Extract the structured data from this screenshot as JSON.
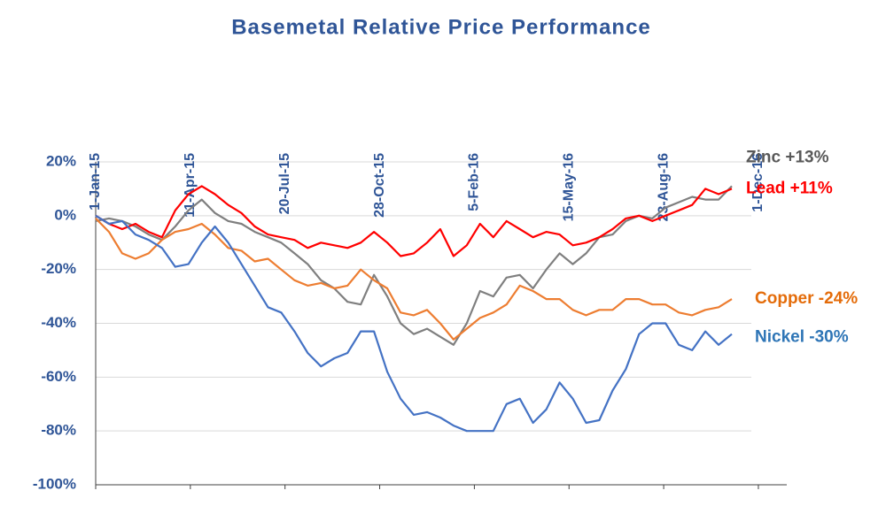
{
  "chart_data": {
    "type": "line",
    "title": "Basemetal Relative Price Performance",
    "x": [
      "2015-01-01",
      "2015-01-15",
      "2015-01-29",
      "2015-02-12",
      "2015-02-26",
      "2015-03-12",
      "2015-03-26",
      "2015-04-09",
      "2015-04-23",
      "2015-05-07",
      "2015-05-21",
      "2015-06-04",
      "2015-06-18",
      "2015-07-02",
      "2015-07-16",
      "2015-07-30",
      "2015-08-13",
      "2015-08-27",
      "2015-09-10",
      "2015-09-24",
      "2015-10-08",
      "2015-10-22",
      "2015-11-05",
      "2015-11-19",
      "2015-12-03",
      "2015-12-17",
      "2015-12-31",
      "2016-01-14",
      "2016-01-28",
      "2016-02-11",
      "2016-02-25",
      "2016-03-10",
      "2016-03-24",
      "2016-04-07",
      "2016-04-21",
      "2016-05-05",
      "2016-05-19",
      "2016-06-02",
      "2016-06-16",
      "2016-06-30",
      "2016-07-14",
      "2016-07-28",
      "2016-08-11",
      "2016-08-25",
      "2016-09-08",
      "2016-09-22",
      "2016-10-06",
      "2016-10-20",
      "2016-11-03"
    ],
    "series": [
      {
        "name": "Zinc +13%",
        "color": "#7f7f7f",
        "label_color": "#595959",
        "values": [
          -2,
          -1,
          -2,
          -4,
          -7,
          -9,
          -4,
          2,
          6,
          1,
          -2,
          -3,
          -6,
          -8,
          -10,
          -14,
          -18,
          -24,
          -27,
          -32,
          -33,
          -22,
          -30,
          -40,
          -44,
          -42,
          -45,
          -48,
          -40,
          -28,
          -30,
          -23,
          -22,
          -27,
          -20,
          -14,
          -18,
          -14,
          -8,
          -7,
          -2,
          0,
          -1,
          3,
          5,
          7,
          6,
          6,
          11
        ]
      },
      {
        "name": "Lead +11%",
        "color": "#ff0000",
        "label_color": "#ff0000",
        "values": [
          0,
          -3,
          -5,
          -3,
          -6,
          -8,
          2,
          8,
          11,
          8,
          4,
          1,
          -4,
          -7,
          -8,
          -9,
          -12,
          -10,
          -11,
          -12,
          -10,
          -6,
          -10,
          -15,
          -14,
          -10,
          -5,
          -15,
          -11,
          -3,
          -8,
          -2,
          -5,
          -8,
          -6,
          -7,
          -11,
          -10,
          -8,
          -5,
          -1,
          0,
          -2,
          0,
          2,
          4,
          10,
          8,
          10
        ]
      },
      {
        "name": "Copper -24%",
        "color": "#ed7d31",
        "label_color": "#e46c0a",
        "values": [
          -1,
          -6,
          -14,
          -16,
          -14,
          -9,
          -6,
          -5,
          -3,
          -7,
          -12,
          -13,
          -17,
          -16,
          -20,
          -24,
          -26,
          -25,
          -27,
          -26,
          -20,
          -24,
          -27,
          -36,
          -37,
          -35,
          -40,
          -46,
          -42,
          -38,
          -36,
          -33,
          -26,
          -28,
          -31,
          -31,
          -35,
          -37,
          -35,
          -35,
          -31,
          -31,
          -33,
          -33,
          -36,
          -37,
          -35,
          -34,
          -31
        ]
      },
      {
        "name": "Nickel -30%",
        "color": "#4472c4",
        "label_color": "#2e75b6",
        "values": [
          0,
          -3,
          -2,
          -7,
          -9,
          -12,
          -19,
          -18,
          -10,
          -4,
          -10,
          -18,
          -26,
          -34,
          -36,
          -43,
          -51,
          -56,
          -53,
          -51,
          -43,
          -43,
          -58,
          -68,
          -74,
          -73,
          -75,
          -78,
          -80,
          -80,
          -80,
          -70,
          -68,
          -77,
          -72,
          -62,
          -68,
          -77,
          -76,
          -65,
          -57,
          -44,
          -40,
          -40,
          -48,
          -50,
          -43,
          -48,
          -44
        ]
      }
    ],
    "xlim": [
      "2015-01-01",
      "2016-12-31"
    ],
    "xticks": [
      {
        "value": "2015-01-01",
        "label": "1-Jan-15"
      },
      {
        "value": "2015-04-11",
        "label": "11-Apr-15"
      },
      {
        "value": "2015-07-20",
        "label": "20-Jul-15"
      },
      {
        "value": "2015-10-28",
        "label": "28-Oct-15"
      },
      {
        "value": "2016-02-05",
        "label": "5-Feb-16"
      },
      {
        "value": "2016-05-15",
        "label": "15-May-16"
      },
      {
        "value": "2016-08-23",
        "label": "23-Aug-16"
      },
      {
        "value": "2016-12-01",
        "label": "1-Dec-16"
      }
    ],
    "ylim": [
      -100,
      20
    ],
    "yticks": [
      {
        "value": 20,
        "label": "20%"
      },
      {
        "value": 0,
        "label": "0%"
      },
      {
        "value": -20,
        "label": "-20%"
      },
      {
        "value": -40,
        "label": "-40%"
      },
      {
        "value": -60,
        "label": "-60%"
      },
      {
        "value": -80,
        "label": "-80%"
      },
      {
        "value": -100,
        "label": "-100%"
      }
    ],
    "grid": true
  }
}
